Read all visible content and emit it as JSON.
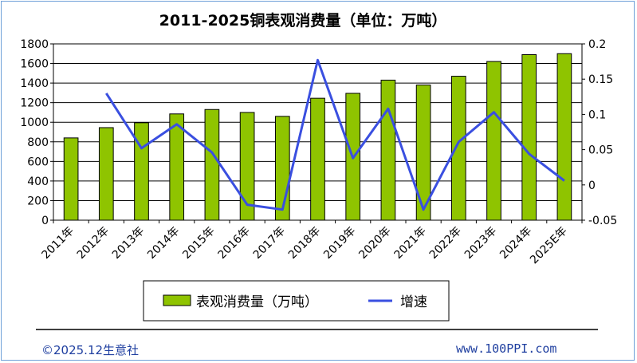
{
  "chart_data": {
    "type": "bar",
    "title": "2011-2025铜表观消费量（单位：万吨）",
    "categories": [
      "2011年",
      "2012年",
      "2013年",
      "2014年",
      "2015年",
      "2016年",
      "2017年",
      "2018年",
      "2019年",
      "2020年",
      "2021年",
      "2022年",
      "2023年",
      "2024年",
      "2025E年"
    ],
    "series": [
      {
        "name": "表观消费量（万吨）",
        "type": "bar",
        "axis": "left",
        "color": "#8fc400",
        "values": [
          840,
          945,
          995,
          1085,
          1130,
          1100,
          1060,
          1245,
          1295,
          1430,
          1380,
          1470,
          1620,
          1690,
          1700
        ]
      },
      {
        "name": "增速",
        "type": "line",
        "axis": "right",
        "color": "#3a4fe0",
        "values": [
          null,
          0.13,
          0.052,
          0.086,
          0.046,
          -0.028,
          -0.035,
          0.177,
          0.038,
          0.108,
          -0.035,
          0.061,
          0.103,
          0.044,
          0.006
        ]
      }
    ],
    "left_axis": {
      "min": 0,
      "max": 1800,
      "ticks": [
        0,
        200,
        400,
        600,
        800,
        1000,
        1200,
        1400,
        1600,
        1800
      ]
    },
    "right_axis": {
      "min": -0.05,
      "max": 0.2,
      "ticks": [
        -0.05,
        0,
        0.05,
        0.1,
        0.15,
        0.2
      ],
      "tick_labels": [
        "-0.05",
        "0",
        "0.05",
        "0.1",
        "0.15",
        "0.2"
      ]
    },
    "grid": true,
    "legend": "bottom"
  },
  "footer": {
    "left": "©2025.12生意社",
    "right": "www.100PPI.com"
  }
}
